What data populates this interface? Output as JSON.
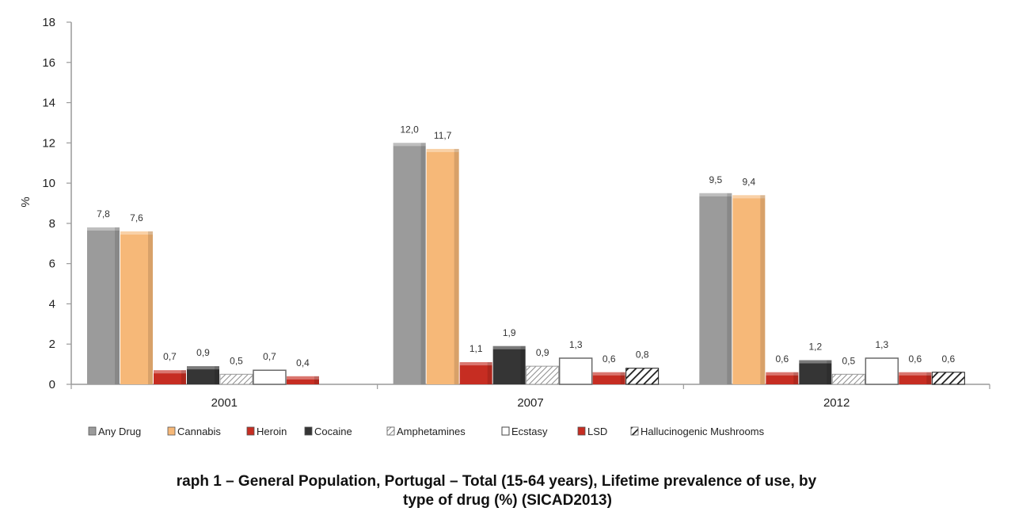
{
  "caption": {
    "line1": "raph 1 – General Population, Portugal – Total (15-64 years), Lifetime prevalence of use, by",
    "line2": "type of drug (%) (SICAD2013)"
  },
  "chart_data": {
    "type": "bar",
    "categories": [
      "2001",
      "2007",
      "2012"
    ],
    "ylabel": "%",
    "xlabel": "",
    "ylim": [
      0,
      18
    ],
    "yticks": [
      0,
      2,
      4,
      6,
      8,
      10,
      12,
      14,
      16,
      18
    ],
    "grid": false,
    "legend_position": "bottom",
    "series": [
      {
        "name": "Any Drug",
        "color": "#9b9b9b",
        "pattern": "solid",
        "values": [
          7.8,
          12.0,
          9.5
        ],
        "labels": [
          "7,8",
          "12,0",
          "9,5"
        ]
      },
      {
        "name": "Cannabis",
        "color": "#f6b878",
        "pattern": "solid",
        "values": [
          7.6,
          11.7,
          9.4
        ],
        "labels": [
          "7,6",
          "11,7",
          "9,4"
        ]
      },
      {
        "name": "Heroin",
        "color": "#c62d22",
        "pattern": "solid",
        "values": [
          0.7,
          1.1,
          0.6
        ],
        "labels": [
          "0,7",
          "1,1",
          "0,6"
        ]
      },
      {
        "name": "Cocaine",
        "color": "#353535",
        "pattern": "solid",
        "values": [
          0.9,
          1.9,
          1.2
        ],
        "labels": [
          "0,9",
          "1,9",
          "1,2"
        ]
      },
      {
        "name": "Amphetamines",
        "color": "#b8b8b8",
        "pattern": "light-diagonal",
        "values": [
          0.5,
          0.9,
          0.5
        ],
        "labels": [
          "0,5",
          "0,9",
          "0,5"
        ]
      },
      {
        "name": "Ecstasy",
        "color": "#ffffff",
        "pattern": "outline",
        "values": [
          0.7,
          1.3,
          1.3
        ],
        "labels": [
          "0,7",
          "1,3",
          "1,3"
        ]
      },
      {
        "name": "LSD",
        "color": "#c62d22",
        "pattern": "solid",
        "values": [
          0.4,
          0.6,
          0.6
        ],
        "labels": [
          "0,4",
          "0,6",
          "0,6"
        ]
      },
      {
        "name": "Hallucinogenic Mushrooms",
        "color": "#222222",
        "pattern": "heavy-diagonal",
        "values": [
          null,
          0.8,
          0.6
        ],
        "labels": [
          "",
          "0,8",
          "0,6"
        ]
      }
    ]
  }
}
